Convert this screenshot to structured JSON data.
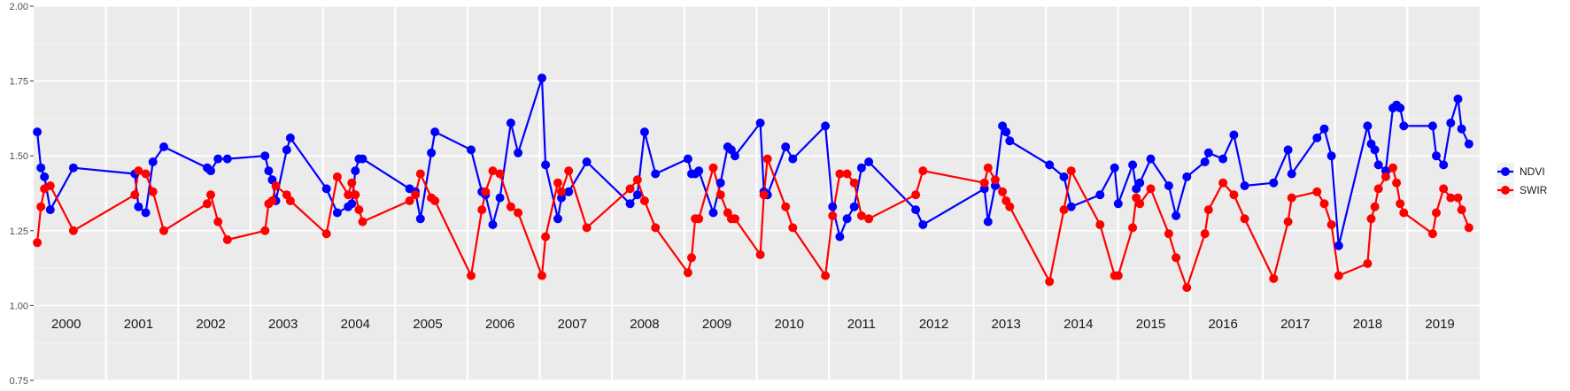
{
  "chart_data": {
    "type": "line",
    "ylim": [
      0.75,
      2.0
    ],
    "y_ticks": [
      "0.75",
      "1.00",
      "1.25",
      "1.50",
      "1.75",
      "2.00"
    ],
    "xlim": [
      2000,
      2020
    ],
    "year_labels": [
      "2000",
      "2001",
      "2002",
      "2003",
      "2004",
      "2005",
      "2006",
      "2007",
      "2008",
      "2009",
      "2010",
      "2011",
      "2012",
      "2013",
      "2014",
      "2015",
      "2016",
      "2017",
      "2018",
      "2019"
    ],
    "grid": true,
    "legend_position": "right",
    "series": [
      {
        "name": "NDVI",
        "color": "#0000ff",
        "points": [
          [
            2000.05,
            1.58
          ],
          [
            2000.1,
            1.46
          ],
          [
            2000.15,
            1.43
          ],
          [
            2000.23,
            1.32
          ],
          [
            2000.55,
            1.46
          ],
          [
            2001.4,
            1.44
          ],
          [
            2001.45,
            1.33
          ],
          [
            2001.55,
            1.31
          ],
          [
            2001.65,
            1.48
          ],
          [
            2001.8,
            1.53
          ],
          [
            2002.4,
            1.46
          ],
          [
            2002.45,
            1.45
          ],
          [
            2002.55,
            1.49
          ],
          [
            2002.68,
            1.49
          ],
          [
            2003.2,
            1.5
          ],
          [
            2003.25,
            1.45
          ],
          [
            2003.3,
            1.42
          ],
          [
            2003.35,
            1.35
          ],
          [
            2003.5,
            1.52
          ],
          [
            2003.55,
            1.56
          ],
          [
            2004.05,
            1.39
          ],
          [
            2004.2,
            1.31
          ],
          [
            2004.35,
            1.33
          ],
          [
            2004.4,
            1.34
          ],
          [
            2004.45,
            1.45
          ],
          [
            2004.5,
            1.49
          ],
          [
            2004.55,
            1.49
          ],
          [
            2005.2,
            1.39
          ],
          [
            2005.28,
            1.38
          ],
          [
            2005.35,
            1.29
          ],
          [
            2005.5,
            1.51
          ],
          [
            2005.55,
            1.58
          ],
          [
            2006.05,
            1.52
          ],
          [
            2006.2,
            1.38
          ],
          [
            2006.25,
            1.37
          ],
          [
            2006.35,
            1.27
          ],
          [
            2006.45,
            1.36
          ],
          [
            2006.6,
            1.61
          ],
          [
            2006.7,
            1.51
          ],
          [
            2007.03,
            1.76
          ],
          [
            2007.08,
            1.47
          ],
          [
            2007.25,
            1.29
          ],
          [
            2007.3,
            1.36
          ],
          [
            2007.4,
            1.38
          ],
          [
            2007.65,
            1.48
          ],
          [
            2008.25,
            1.34
          ],
          [
            2008.35,
            1.37
          ],
          [
            2008.45,
            1.58
          ],
          [
            2008.6,
            1.44
          ],
          [
            2009.05,
            1.49
          ],
          [
            2009.1,
            1.44
          ],
          [
            2009.15,
            1.44
          ],
          [
            2009.2,
            1.45
          ],
          [
            2009.4,
            1.31
          ],
          [
            2009.5,
            1.41
          ],
          [
            2009.6,
            1.53
          ],
          [
            2009.65,
            1.52
          ],
          [
            2009.7,
            1.5
          ],
          [
            2010.05,
            1.61
          ],
          [
            2010.1,
            1.38
          ],
          [
            2010.15,
            1.37
          ],
          [
            2010.4,
            1.53
          ],
          [
            2010.5,
            1.49
          ],
          [
            2010.95,
            1.6
          ],
          [
            2011.05,
            1.33
          ],
          [
            2011.15,
            1.23
          ],
          [
            2011.25,
            1.29
          ],
          [
            2011.35,
            1.33
          ],
          [
            2011.45,
            1.46
          ],
          [
            2011.55,
            1.48
          ],
          [
            2012.2,
            1.32
          ],
          [
            2012.3,
            1.27
          ],
          [
            2013.15,
            1.39
          ],
          [
            2013.2,
            1.28
          ],
          [
            2013.3,
            1.4
          ],
          [
            2013.4,
            1.6
          ],
          [
            2013.45,
            1.58
          ],
          [
            2013.5,
            1.55
          ],
          [
            2014.05,
            1.47
          ],
          [
            2014.25,
            1.43
          ],
          [
            2014.35,
            1.33
          ],
          [
            2014.75,
            1.37
          ],
          [
            2014.95,
            1.46
          ],
          [
            2015.0,
            1.34
          ],
          [
            2015.2,
            1.47
          ],
          [
            2015.25,
            1.39
          ],
          [
            2015.3,
            1.41
          ],
          [
            2015.45,
            1.49
          ],
          [
            2015.7,
            1.4
          ],
          [
            2015.8,
            1.3
          ],
          [
            2015.95,
            1.43
          ],
          [
            2016.2,
            1.48
          ],
          [
            2016.25,
            1.51
          ],
          [
            2016.45,
            1.49
          ],
          [
            2016.6,
            1.57
          ],
          [
            2016.75,
            1.4
          ],
          [
            2017.15,
            1.41
          ],
          [
            2017.35,
            1.52
          ],
          [
            2017.4,
            1.44
          ],
          [
            2017.75,
            1.56
          ],
          [
            2017.85,
            1.59
          ],
          [
            2017.95,
            1.5
          ],
          [
            2018.05,
            1.2
          ],
          [
            2018.45,
            1.6
          ],
          [
            2018.5,
            1.54
          ],
          [
            2018.55,
            1.52
          ],
          [
            2018.6,
            1.47
          ],
          [
            2018.7,
            1.45
          ],
          [
            2018.8,
            1.66
          ],
          [
            2018.85,
            1.67
          ],
          [
            2018.9,
            1.66
          ],
          [
            2018.95,
            1.6
          ],
          [
            2019.35,
            1.6
          ],
          [
            2019.4,
            1.5
          ],
          [
            2019.5,
            1.47
          ],
          [
            2019.6,
            1.61
          ],
          [
            2019.7,
            1.69
          ],
          [
            2019.75,
            1.59
          ],
          [
            2019.85,
            1.54
          ]
        ]
      },
      {
        "name": "SWIR",
        "color": "#ff0000",
        "points": [
          [
            2000.05,
            1.21
          ],
          [
            2000.1,
            1.33
          ],
          [
            2000.15,
            1.39
          ],
          [
            2000.23,
            1.4
          ],
          [
            2000.55,
            1.25
          ],
          [
            2001.4,
            1.37
          ],
          [
            2001.45,
            1.45
          ],
          [
            2001.55,
            1.44
          ],
          [
            2001.65,
            1.38
          ],
          [
            2001.8,
            1.25
          ],
          [
            2002.4,
            1.34
          ],
          [
            2002.45,
            1.37
          ],
          [
            2002.55,
            1.28
          ],
          [
            2002.68,
            1.22
          ],
          [
            2003.2,
            1.25
          ],
          [
            2003.25,
            1.34
          ],
          [
            2003.3,
            1.35
          ],
          [
            2003.35,
            1.4
          ],
          [
            2003.5,
            1.37
          ],
          [
            2003.55,
            1.35
          ],
          [
            2004.05,
            1.24
          ],
          [
            2004.2,
            1.43
          ],
          [
            2004.35,
            1.37
          ],
          [
            2004.4,
            1.41
          ],
          [
            2004.45,
            1.37
          ],
          [
            2004.5,
            1.32
          ],
          [
            2004.55,
            1.28
          ],
          [
            2005.2,
            1.35
          ],
          [
            2005.28,
            1.37
          ],
          [
            2005.35,
            1.44
          ],
          [
            2005.5,
            1.36
          ],
          [
            2005.55,
            1.35
          ],
          [
            2006.05,
            1.1
          ],
          [
            2006.2,
            1.32
          ],
          [
            2006.25,
            1.38
          ],
          [
            2006.35,
            1.45
          ],
          [
            2006.45,
            1.44
          ],
          [
            2006.6,
            1.33
          ],
          [
            2006.7,
            1.31
          ],
          [
            2007.03,
            1.1
          ],
          [
            2007.08,
            1.23
          ],
          [
            2007.25,
            1.41
          ],
          [
            2007.3,
            1.38
          ],
          [
            2007.4,
            1.45
          ],
          [
            2007.65,
            1.26
          ],
          [
            2008.25,
            1.39
          ],
          [
            2008.35,
            1.42
          ],
          [
            2008.45,
            1.35
          ],
          [
            2008.6,
            1.26
          ],
          [
            2009.05,
            1.11
          ],
          [
            2009.1,
            1.16
          ],
          [
            2009.15,
            1.29
          ],
          [
            2009.2,
            1.29
          ],
          [
            2009.4,
            1.46
          ],
          [
            2009.5,
            1.37
          ],
          [
            2009.6,
            1.31
          ],
          [
            2009.65,
            1.29
          ],
          [
            2009.7,
            1.29
          ],
          [
            2010.05,
            1.17
          ],
          [
            2010.1,
            1.37
          ],
          [
            2010.15,
            1.49
          ],
          [
            2010.4,
            1.33
          ],
          [
            2010.5,
            1.26
          ],
          [
            2010.95,
            1.1
          ],
          [
            2011.05,
            1.3
          ],
          [
            2011.15,
            1.44
          ],
          [
            2011.25,
            1.44
          ],
          [
            2011.35,
            1.41
          ],
          [
            2011.45,
            1.3
          ],
          [
            2011.55,
            1.29
          ],
          [
            2012.2,
            1.37
          ],
          [
            2012.3,
            1.45
          ],
          [
            2013.15,
            1.41
          ],
          [
            2013.2,
            1.46
          ],
          [
            2013.3,
            1.42
          ],
          [
            2013.4,
            1.38
          ],
          [
            2013.45,
            1.35
          ],
          [
            2013.5,
            1.33
          ],
          [
            2014.05,
            1.08
          ],
          [
            2014.25,
            1.32
          ],
          [
            2014.35,
            1.45
          ],
          [
            2014.75,
            1.27
          ],
          [
            2014.95,
            1.1
          ],
          [
            2015.0,
            1.1
          ],
          [
            2015.2,
            1.26
          ],
          [
            2015.25,
            1.36
          ],
          [
            2015.3,
            1.34
          ],
          [
            2015.45,
            1.39
          ],
          [
            2015.7,
            1.24
          ],
          [
            2015.8,
            1.16
          ],
          [
            2015.95,
            1.06
          ],
          [
            2016.2,
            1.24
          ],
          [
            2016.25,
            1.32
          ],
          [
            2016.45,
            1.41
          ],
          [
            2016.6,
            1.37
          ],
          [
            2016.75,
            1.29
          ],
          [
            2017.15,
            1.09
          ],
          [
            2017.35,
            1.28
          ],
          [
            2017.4,
            1.36
          ],
          [
            2017.75,
            1.38
          ],
          [
            2017.85,
            1.34
          ],
          [
            2017.95,
            1.27
          ],
          [
            2018.05,
            1.1
          ],
          [
            2018.45,
            1.14
          ],
          [
            2018.5,
            1.29
          ],
          [
            2018.55,
            1.33
          ],
          [
            2018.6,
            1.39
          ],
          [
            2018.7,
            1.43
          ],
          [
            2018.8,
            1.46
          ],
          [
            2018.85,
            1.41
          ],
          [
            2018.9,
            1.34
          ],
          [
            2018.95,
            1.31
          ],
          [
            2019.35,
            1.24
          ],
          [
            2019.4,
            1.31
          ],
          [
            2019.5,
            1.39
          ],
          [
            2019.6,
            1.36
          ],
          [
            2019.7,
            1.36
          ],
          [
            2019.75,
            1.32
          ],
          [
            2019.85,
            1.26
          ]
        ]
      }
    ]
  }
}
